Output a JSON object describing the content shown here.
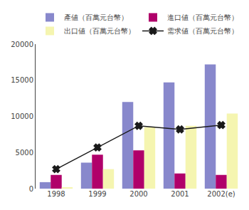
{
  "chart_data": {
    "type": "bar",
    "categories": [
      "1998",
      "1999",
      "2000",
      "2001",
      "2002(e)"
    ],
    "series": [
      {
        "name": "產値（百萬元台幣）",
        "color": "#8888cc",
        "values": [
          900,
          3600,
          12000,
          14700,
          17200
        ]
      },
      {
        "name": "進口値（百萬元台幣）",
        "color": "#b0006a",
        "values": [
          1900,
          4700,
          5300,
          2100,
          1900
        ]
      },
      {
        "name": "出口値（百萬元台幣）",
        "color": "#f5f5b0",
        "values": [
          150,
          2700,
          8500,
          8700,
          10400
        ]
      },
      {
        "name": "需求値（百萬元台幣）",
        "type": "line",
        "color": "#1a1a1a",
        "marker": "x",
        "values": [
          2700,
          5700,
          8700,
          8200,
          8800
        ]
      }
    ],
    "ylim": [
      0,
      20000
    ],
    "yticks": [
      0,
      5000,
      10000,
      15000,
      20000
    ],
    "grid": false,
    "legend": "upper left"
  }
}
